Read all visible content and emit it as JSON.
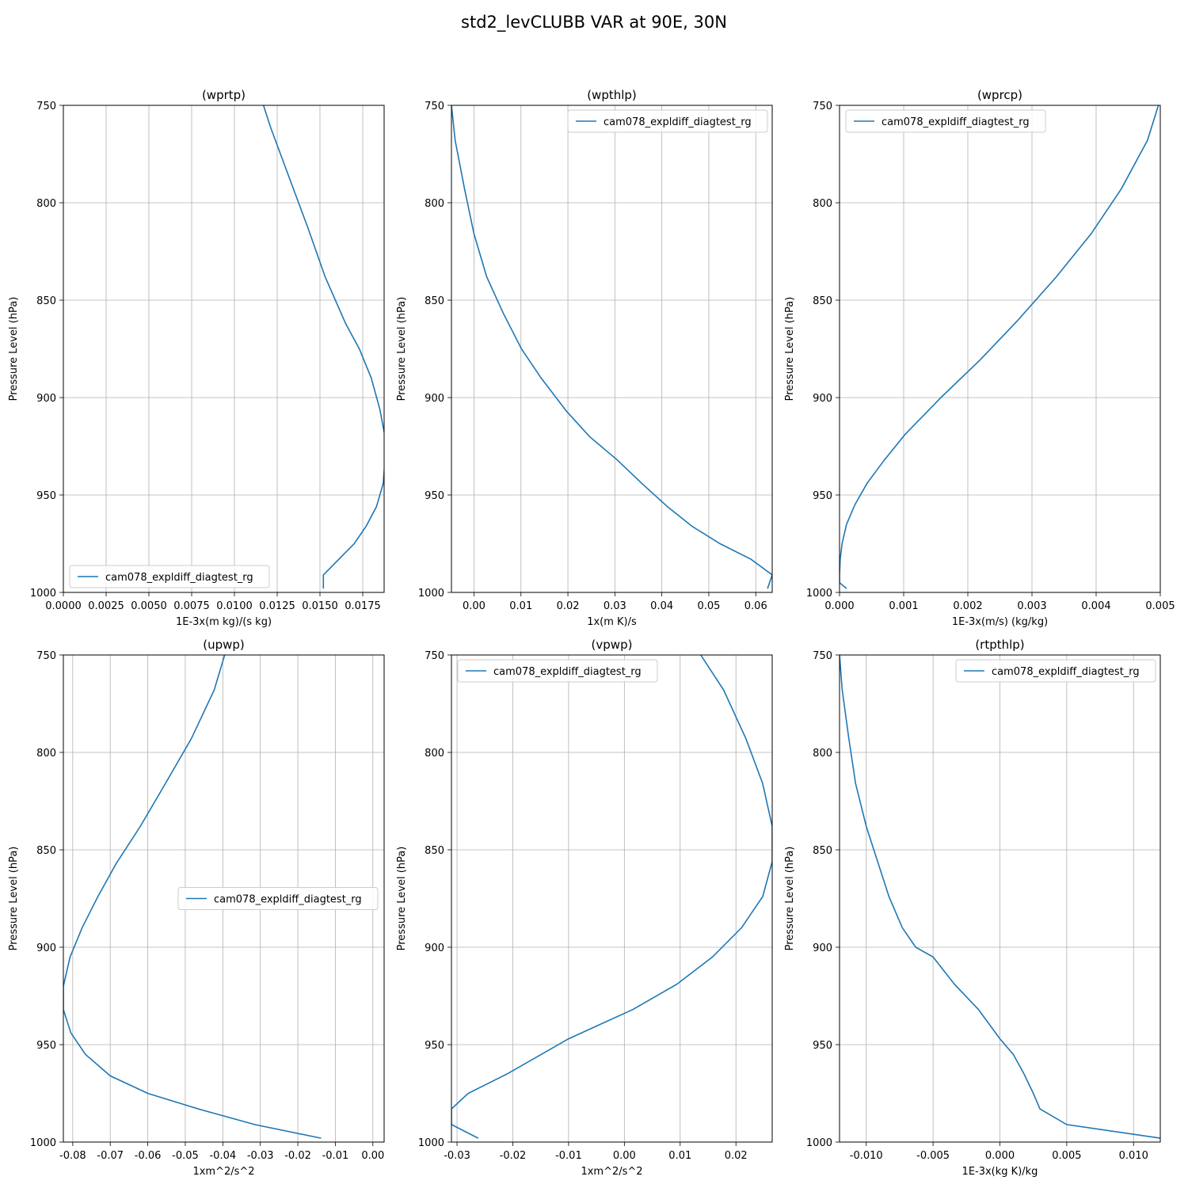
{
  "figure": {
    "title": "std2_levCLUBB VAR at 90E, 30N"
  },
  "colors": {
    "line": "#1f77b4",
    "grid": "#b0b0b0",
    "legend_border": "#cccccc"
  },
  "chart_data": [
    {
      "type": "line",
      "title": "(wprtp)",
      "xlabel": "1E-3x(m kg)/(s kg)",
      "ylabel": "Pressure Level (hPa)",
      "xlim": [
        0.0,
        0.01875
      ],
      "ylim": [
        1000,
        750
      ],
      "xticks": [
        "0.0000",
        "0.0025",
        "0.0050",
        "0.0075",
        "0.0100",
        "0.0125",
        "0.0150",
        "0.0175"
      ],
      "yticks": [
        "750",
        "800",
        "850",
        "900",
        "950",
        "1000"
      ],
      "grid": true,
      "legend_loc": "lower left",
      "series": [
        {
          "name": "cam078_expldiff_diagtest_rg",
          "x": [
            0.0117,
            0.0121,
            0.0132,
            0.0143,
            0.0153,
            0.0165,
            0.0173,
            0.018,
            0.0185,
            0.0188,
            0.0188,
            0.0187,
            0.0183,
            0.0177,
            0.017,
            0.0161,
            0.0152,
            0.0152
          ],
          "y": [
            750,
            761,
            787,
            813,
            838,
            862,
            875,
            890,
            906,
            920,
            932,
            944,
            956,
            966,
            975,
            983,
            991,
            998
          ]
        }
      ]
    },
    {
      "type": "line",
      "title": "(wpthlp)",
      "xlabel": "1x(m K)/s",
      "ylabel": "Pressure Level (hPa)",
      "xlim": [
        -0.0048,
        0.0635
      ],
      "ylim": [
        1000,
        750
      ],
      "xticks": [
        "0.00",
        "0.01",
        "0.02",
        "0.03",
        "0.04",
        "0.05",
        "0.06"
      ],
      "yticks": [
        "750",
        "800",
        "850",
        "900",
        "950",
        "1000"
      ],
      "grid": true,
      "legend_loc": "upper right",
      "series": [
        {
          "name": "cam078_expldiff_diagtest_rg",
          "x": [
            -0.0048,
            -0.004,
            -0.002,
            0.0,
            0.0027,
            0.0063,
            0.0101,
            0.0143,
            0.0197,
            0.0246,
            0.0305,
            0.0357,
            0.0412,
            0.0464,
            0.0524,
            0.059,
            0.0635,
            0.0625
          ],
          "y": [
            750,
            768,
            793,
            816,
            838,
            857,
            875,
            890,
            907,
            920,
            932,
            944,
            956,
            966,
            975,
            983,
            991,
            998
          ]
        }
      ]
    },
    {
      "type": "line",
      "title": "(wprcp)",
      "xlabel": "1E-3x(m/s) (kg/kg)",
      "ylabel": "Pressure Level (hPa)",
      "xlim": [
        0.0,
        0.005
      ],
      "ylim": [
        1000,
        750
      ],
      "xticks": [
        "0.000",
        "0.001",
        "0.002",
        "0.003",
        "0.004",
        "0.005"
      ],
      "yticks": [
        "750",
        "800",
        "850",
        "900",
        "950",
        "1000"
      ],
      "grid": true,
      "legend_loc": "upper left",
      "series": [
        {
          "name": "cam078_expldiff_diagtest_rg",
          "x": [
            0.00497,
            0.0048,
            0.00439,
            0.00392,
            0.00338,
            0.00276,
            0.00218,
            0.00158,
            0.00102,
            0.0007,
            0.00043,
            0.00024,
            0.00011,
            4e-05,
            1e-05,
            0.0,
            0.0,
            0.00011
          ],
          "y": [
            750,
            768,
            793,
            816,
            838,
            861,
            881,
            900,
            919,
            932,
            944,
            955,
            965,
            975,
            983,
            991,
            995,
            998
          ]
        }
      ]
    },
    {
      "type": "line",
      "title": "(upwp)",
      "xlabel": "1xm^2/s^2",
      "ylabel": "Pressure Level (hPa)",
      "xlim": [
        -0.0825,
        0.003
      ],
      "ylim": [
        1000,
        750
      ],
      "xticks": [
        "-0.08",
        "-0.07",
        "-0.06",
        "-0.05",
        "-0.04",
        "-0.03",
        "-0.02",
        "-0.01",
        "0.00"
      ],
      "yticks": [
        "750",
        "800",
        "850",
        "900",
        "950",
        "1000"
      ],
      "grid": true,
      "legend_loc": "center right",
      "series": [
        {
          "name": "cam078_expldiff_diagtest_rg",
          "x": [
            -0.0395,
            -0.0423,
            -0.0484,
            -0.0553,
            -0.062,
            -0.0684,
            -0.0733,
            -0.0775,
            -0.0807,
            -0.0825,
            -0.0825,
            -0.0805,
            -0.0766,
            -0.07,
            -0.06,
            -0.0465,
            -0.0315,
            -0.0138
          ],
          "y": [
            750,
            768,
            793,
            816,
            838,
            857,
            874,
            890,
            905,
            920,
            932,
            944,
            955,
            966,
            975,
            983,
            991,
            998
          ]
        }
      ]
    },
    {
      "type": "line",
      "title": "(vpwp)",
      "xlabel": "1xm^2/s^2",
      "ylabel": "Pressure Level (hPa)",
      "xlim": [
        -0.031,
        0.0265
      ],
      "ylim": [
        1000,
        750
      ],
      "xticks": [
        "-0.03",
        "-0.02",
        "-0.01",
        "0.00",
        "0.01",
        "0.02"
      ],
      "yticks": [
        "750",
        "800",
        "850",
        "900",
        "950",
        "1000"
      ],
      "grid": true,
      "legend_loc": "upper left",
      "series": [
        {
          "name": "cam078_expldiff_diagtest_rg",
          "x": [
            0.0137,
            0.0178,
            0.0218,
            0.0248,
            0.0265,
            0.0265,
            0.0248,
            0.021,
            0.0158,
            0.0094,
            0.0015,
            -0.01,
            -0.021,
            -0.028,
            -0.031,
            -0.031,
            -0.0262
          ],
          "y": [
            750,
            768,
            793,
            816,
            838,
            856,
            874,
            890,
            905,
            919,
            932,
            947,
            965,
            975,
            983,
            991,
            998
          ]
        }
      ]
    },
    {
      "type": "line",
      "title": "(rtpthlp)",
      "xlabel": "1E-3x(kg K)/kg",
      "ylabel": "Pressure Level (hPa)",
      "xlim": [
        -0.012,
        0.012
      ],
      "ylim": [
        1000,
        750
      ],
      "xticks": [
        "-0.010",
        "-0.005",
        "0.000",
        "0.005",
        "0.010"
      ],
      "yticks": [
        "750",
        "800",
        "850",
        "900",
        "950",
        "1000"
      ],
      "grid": true,
      "legend_loc": "upper right",
      "series": [
        {
          "name": "cam078_expldiff_diagtest_rg",
          "x": [
            -0.012,
            -0.0118,
            -0.0113,
            -0.0108,
            -0.01,
            -0.0091,
            -0.0083,
            -0.0073,
            -0.0063,
            -0.005,
            -0.0034,
            -0.0016,
            0.0,
            0.001,
            0.0018,
            0.0025,
            0.003,
            0.005,
            0.012
          ],
          "y": [
            750,
            768,
            793,
            816,
            838,
            857,
            874,
            890,
            900,
            905,
            919,
            932,
            947,
            955,
            965,
            975,
            983,
            991,
            998
          ]
        }
      ]
    }
  ]
}
